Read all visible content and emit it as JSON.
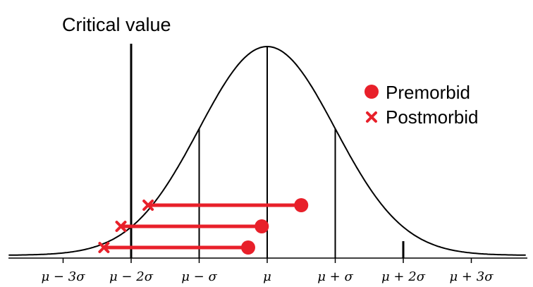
{
  "title": "Critical value",
  "axis": {
    "tick_labels": [
      "μ − 3σ",
      "μ − 2σ",
      "μ − σ",
      "μ",
      "μ + σ",
      "μ + 2σ",
      "μ + 3σ"
    ],
    "tick_values": [
      -3,
      -2,
      -1,
      0,
      1,
      2,
      3
    ]
  },
  "critical_value_sd": -2,
  "legend": {
    "premorbid_label": "Premorbid",
    "postmorbid_label": "Postmorbid"
  },
  "colors": {
    "marker": "#e8202a",
    "curve": "#000000"
  },
  "cases": [
    {
      "premorbid_sd": 0.5,
      "postmorbid_sd": -1.75
    },
    {
      "premorbid_sd": -0.08,
      "postmorbid_sd": -2.15
    },
    {
      "premorbid_sd": -0.28,
      "postmorbid_sd": -2.4
    }
  ]
}
